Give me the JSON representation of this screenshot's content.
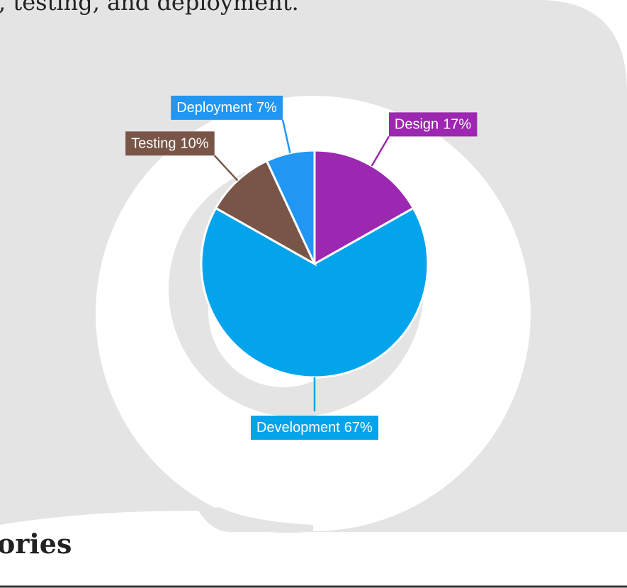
{
  "page": {
    "intro_text": ", testing, and deployment.",
    "heading": "ories"
  },
  "chart_data": {
    "type": "pie",
    "categories": [
      "Design",
      "Development",
      "Testing",
      "Deployment"
    ],
    "values": [
      17,
      67,
      10,
      7
    ],
    "value_labels": [
      "17%",
      "67%",
      "10%",
      "7%"
    ],
    "colors": [
      "#9c27b0",
      "#03a4ec",
      "#795548",
      "#2196f3"
    ]
  }
}
